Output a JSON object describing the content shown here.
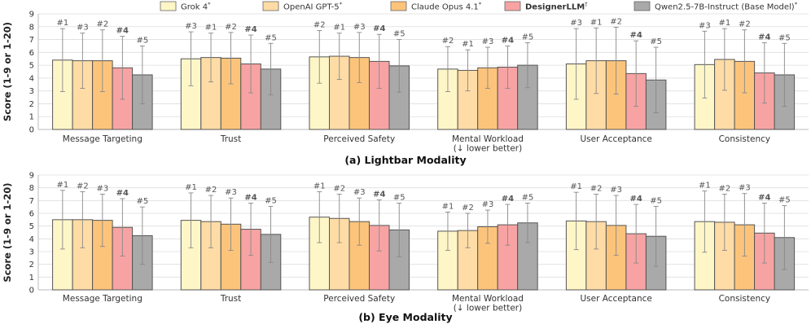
{
  "legend": {
    "placement": "top-center",
    "entries": [
      {
        "name": "Grok 4",
        "sup": "*",
        "color": "#fff6c8",
        "bold": false
      },
      {
        "name": "OpenAI GPT-5",
        "sup": "*",
        "color": "#ffdca6",
        "bold": false
      },
      {
        "name": "Claude Opus 4.1",
        "sup": "*",
        "color": "#fcc47b",
        "bold": false
      },
      {
        "name": "DesignerLLM",
        "sup": "†",
        "color": "#f8a3a3",
        "bold": true
      },
      {
        "name": "Qwen2.5-7B-Instruct (Base Model)",
        "sup": "*",
        "color": "#a9a9a9",
        "bold": false
      }
    ]
  },
  "chart_data": [
    {
      "type": "bar",
      "title": "(a) Lightbar Modality",
      "ylabel": "Score (1-9 or 1-20)",
      "ylim": [
        0,
        9
      ],
      "yticks": [
        0,
        1,
        2,
        3,
        4,
        5,
        6,
        7,
        8,
        9
      ],
      "grid": true,
      "categories": [
        [
          "Message Targeting"
        ],
        [
          "Trust"
        ],
        [
          "Perceived Safety"
        ],
        [
          "Mental Workload",
          "(↓ lower better)"
        ],
        [
          "User Acceptance"
        ],
        [
          "Consistency"
        ]
      ],
      "series": [
        {
          "name": "Grok 4",
          "values": [
            5.4,
            5.5,
            5.65,
            4.7,
            5.1,
            5.05
          ],
          "err": [
            2.45,
            2.1,
            2.05,
            1.75,
            2.75,
            2.6
          ],
          "rank_labels": [
            "#1",
            "#3",
            "#2",
            "#2",
            "#3",
            "#3"
          ]
        },
        {
          "name": "OpenAI GPT-5",
          "values": [
            5.35,
            5.6,
            5.7,
            4.6,
            5.35,
            5.45
          ],
          "err": [
            2.15,
            1.9,
            1.8,
            1.6,
            2.55,
            2.4
          ],
          "rank_labels": [
            "#3",
            "#1",
            "#1",
            "#1",
            "#1",
            "#1"
          ]
        },
        {
          "name": "Claude Opus 4.1",
          "values": [
            5.35,
            5.55,
            5.6,
            4.8,
            5.35,
            5.3
          ],
          "err": [
            2.4,
            2.0,
            1.95,
            1.6,
            2.6,
            2.45
          ],
          "rank_labels": [
            "#2",
            "#2",
            "#3",
            "#3",
            "#2",
            "#2"
          ]
        },
        {
          "name": "DesignerLLM",
          "values": [
            4.8,
            5.1,
            5.3,
            4.85,
            4.35,
            4.4
          ],
          "err": [
            2.45,
            2.25,
            2.1,
            1.65,
            2.55,
            2.35
          ],
          "rank_labels": [
            "#4",
            "#4",
            "#4",
            "#4",
            "#4",
            "#4"
          ]
        },
        {
          "name": "Qwen2.5-7B-Instruct (Base Model)",
          "values": [
            4.25,
            4.7,
            4.95,
            5.0,
            3.85,
            4.25
          ],
          "err": [
            2.25,
            2.0,
            2.05,
            1.75,
            2.55,
            2.45
          ],
          "rank_labels": [
            "#5",
            "#5",
            "#5",
            "#5",
            "#5",
            "#5"
          ]
        }
      ]
    },
    {
      "type": "bar",
      "title": "(b) Eye Modality",
      "ylabel": "Score (1-9 or 1-20)",
      "ylim": [
        0,
        9
      ],
      "yticks": [
        0,
        1,
        2,
        3,
        4,
        5,
        6,
        7,
        8,
        9
      ],
      "grid": true,
      "categories": [
        [
          "Message Targeting"
        ],
        [
          "Trust"
        ],
        [
          "Perceived Safety"
        ],
        [
          "Mental Workload",
          "(↓ lower better)"
        ],
        [
          "User Acceptance"
        ],
        [
          "Consistency"
        ]
      ],
      "series": [
        {
          "name": "Grok 4",
          "values": [
            5.5,
            5.45,
            5.7,
            4.6,
            5.4,
            5.35
          ],
          "err": [
            2.3,
            2.15,
            2.0,
            1.5,
            2.25,
            2.4
          ],
          "rank_labels": [
            "#1",
            "#1",
            "#1",
            "#1",
            "#1",
            "#1"
          ]
        },
        {
          "name": "OpenAI GPT-5",
          "values": [
            5.5,
            5.35,
            5.6,
            4.65,
            5.35,
            5.3
          ],
          "err": [
            2.2,
            2.05,
            1.9,
            1.35,
            2.15,
            2.2
          ],
          "rank_labels": [
            "#2",
            "#2",
            "#2",
            "#2",
            "#2",
            "#2"
          ]
        },
        {
          "name": "Claude Opus 4.1",
          "values": [
            5.45,
            5.15,
            5.35,
            4.95,
            5.05,
            5.1
          ],
          "err": [
            2.05,
            2.05,
            1.85,
            1.3,
            2.35,
            2.45
          ],
          "rank_labels": [
            "#3",
            "#3",
            "#3",
            "#3",
            "#3",
            "#3"
          ]
        },
        {
          "name": "DesignerLLM",
          "values": [
            4.9,
            4.75,
            5.05,
            5.1,
            4.4,
            4.45
          ],
          "err": [
            2.25,
            2.05,
            2.0,
            1.6,
            2.3,
            2.35
          ],
          "rank_labels": [
            "#4",
            "#4",
            "#4",
            "#4",
            "#4",
            "#4"
          ]
        },
        {
          "name": "Qwen2.5-7B-Instruct (Base Model)",
          "values": [
            4.25,
            4.35,
            4.7,
            5.25,
            4.2,
            4.1
          ],
          "err": [
            2.25,
            2.2,
            2.1,
            1.55,
            2.35,
            2.5
          ],
          "rank_labels": [
            "#5",
            "#5",
            "#5",
            "#5",
            "#5",
            "#5"
          ]
        }
      ]
    }
  ]
}
